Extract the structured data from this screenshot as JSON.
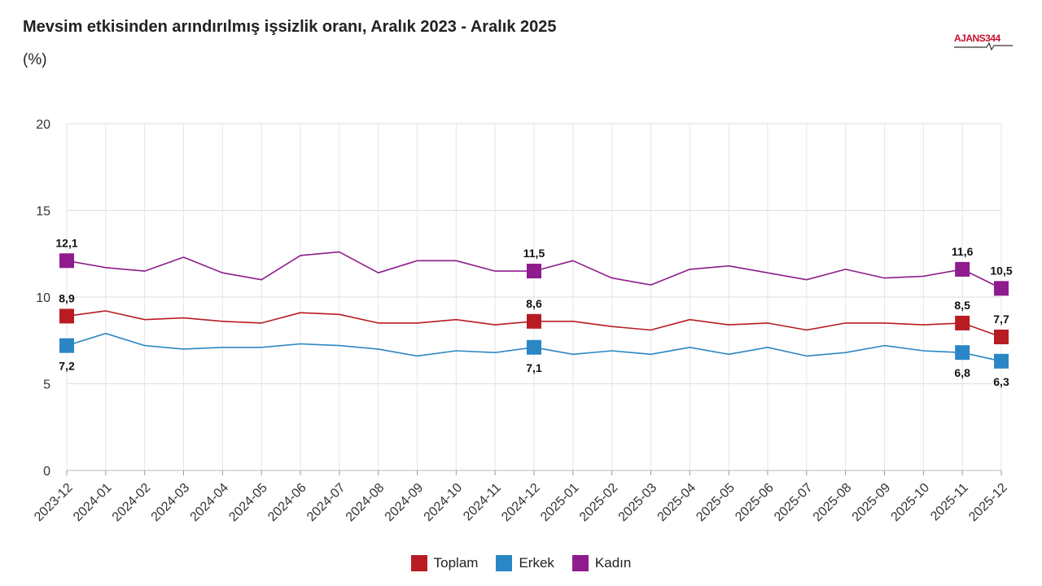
{
  "header": {
    "title": "Mevsim etkisinden arındırılmış işsizlik oranı, Aralık 2023 - Aralık 2025",
    "subtitle": "(%)",
    "logo_text": "AJANS344"
  },
  "chart_data": {
    "type": "line",
    "title": "Mevsim etkisinden arındırılmış işsizlik oranı, Aralık 2023 - Aralık 2025",
    "subtitle": "(%)",
    "xlabel": "",
    "ylabel": "",
    "ylim": [
      0,
      20
    ],
    "yticks": [
      0,
      5,
      10,
      15,
      20
    ],
    "grid": true,
    "legend_position": "bottom-center",
    "x": [
      "2023-12",
      "2024-01",
      "2024-02",
      "2024-03",
      "2024-04",
      "2024-05",
      "2024-06",
      "2024-07",
      "2024-08",
      "2024-09",
      "2024-10",
      "2024-11",
      "2024-12",
      "2025-01",
      "2025-02",
      "2025-03",
      "2025-04",
      "2025-05",
      "2025-06",
      "2025-07",
      "2025-08",
      "2025-09",
      "2025-10",
      "2025-11",
      "2025-12"
    ],
    "series": [
      {
        "name": "Toplam",
        "color": "#b81c22",
        "values": [
          8.9,
          9.2,
          8.7,
          8.8,
          8.6,
          8.5,
          9.1,
          9.0,
          8.5,
          8.5,
          8.7,
          8.4,
          8.6,
          8.6,
          8.3,
          8.1,
          8.7,
          8.4,
          8.5,
          8.1,
          8.5,
          8.5,
          8.4,
          8.5,
          7.7
        ],
        "labels": [
          {
            "index": 0,
            "text": "8,9",
            "pos": "above"
          },
          {
            "index": 12,
            "text": "8,6",
            "pos": "above"
          },
          {
            "index": 23,
            "text": "8,5",
            "pos": "above"
          },
          {
            "index": 24,
            "text": "7,7",
            "pos": "above"
          }
        ]
      },
      {
        "name": "Erkek",
        "color": "#2b86c5",
        "values": [
          7.2,
          7.9,
          7.2,
          7.0,
          7.1,
          7.1,
          7.3,
          7.2,
          7.0,
          6.6,
          6.9,
          6.8,
          7.1,
          6.7,
          6.9,
          6.7,
          7.1,
          6.7,
          7.1,
          6.6,
          6.8,
          7.2,
          6.9,
          6.8,
          6.3
        ],
        "labels": [
          {
            "index": 0,
            "text": "7,2",
            "pos": "below"
          },
          {
            "index": 12,
            "text": "7,1",
            "pos": "below"
          },
          {
            "index": 23,
            "text": "6,8",
            "pos": "below"
          },
          {
            "index": 24,
            "text": "6,3",
            "pos": "below"
          }
        ]
      },
      {
        "name": "Kadın",
        "color": "#8e1c8e",
        "values": [
          12.1,
          11.7,
          11.5,
          12.3,
          11.4,
          11.0,
          12.4,
          12.6,
          11.4,
          12.1,
          12.1,
          11.5,
          11.5,
          12.1,
          11.1,
          10.7,
          11.6,
          11.8,
          11.4,
          11.0,
          11.6,
          11.1,
          11.2,
          11.6,
          10.5
        ],
        "labels": [
          {
            "index": 0,
            "text": "12,1",
            "pos": "above"
          },
          {
            "index": 12,
            "text": "11,5",
            "pos": "above"
          },
          {
            "index": 23,
            "text": "11,6",
            "pos": "above"
          },
          {
            "index": 24,
            "text": "10,5",
            "pos": "above"
          }
        ]
      }
    ]
  }
}
